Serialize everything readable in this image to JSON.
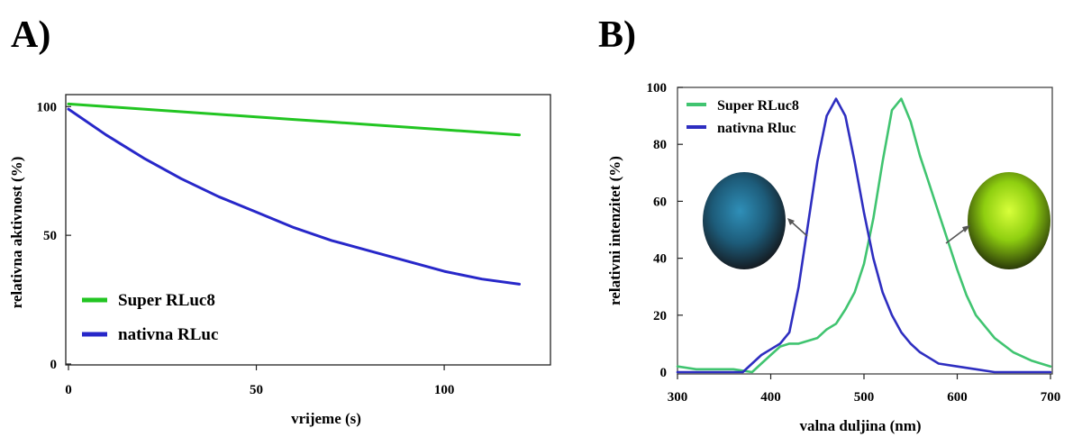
{
  "panels": {
    "a_label": "A)",
    "b_label": "B)"
  },
  "colors": {
    "green": "#22c522",
    "blue": "#2727c9",
    "green_b": "#40c470",
    "blue_b": "#2e2ec0",
    "frame": "#333333"
  },
  "chart_data": [
    {
      "type": "line",
      "title": "",
      "xlabel": "vrijeme (s)",
      "ylabel": "relativna aktivnost (%)",
      "xlim": [
        0,
        123
      ],
      "ylim": [
        0,
        105
      ],
      "xticks": [
        "0",
        "50",
        "100"
      ],
      "yticks": [
        "0",
        "50",
        "100"
      ],
      "legend_position": "bottom-left",
      "grid": false,
      "series": [
        {
          "name": "Super RLuc8",
          "color": "#22c522",
          "x": [
            0,
            10,
            20,
            30,
            40,
            50,
            60,
            70,
            80,
            90,
            100,
            110,
            120
          ],
          "y": [
            101,
            100,
            99,
            98,
            97,
            96,
            95,
            94,
            93,
            92,
            91,
            90,
            89
          ]
        },
        {
          "name": "nativna RLuc",
          "color": "#2727c9",
          "x": [
            0,
            10,
            20,
            30,
            40,
            50,
            60,
            70,
            80,
            90,
            100,
            110,
            120
          ],
          "y": [
            99,
            89,
            80,
            72,
            65,
            59,
            53,
            48,
            44,
            40,
            36,
            33,
            31
          ]
        }
      ]
    },
    {
      "type": "line",
      "title": "",
      "xlabel": "valna duljina (nm)",
      "ylabel": "relativni intenzitet (%)",
      "xlim": [
        300,
        700
      ],
      "ylim": [
        0,
        100
      ],
      "xticks": [
        "300",
        "400",
        "500",
        "600",
        "700"
      ],
      "yticks": [
        "0",
        "20",
        "40",
        "60",
        "80",
        "100"
      ],
      "legend_position": "top-left",
      "grid": false,
      "series": [
        {
          "name": "Super RLuc8",
          "color": "#40c470",
          "x": [
            300,
            320,
            340,
            360,
            380,
            390,
            400,
            410,
            420,
            430,
            440,
            450,
            460,
            470,
            480,
            490,
            500,
            510,
            520,
            530,
            540,
            550,
            560,
            570,
            580,
            590,
            600,
            610,
            620,
            640,
            660,
            680,
            700
          ],
          "y": [
            2,
            1,
            1,
            1,
            0,
            3,
            6,
            9,
            10,
            10,
            11,
            12,
            15,
            17,
            22,
            28,
            38,
            54,
            74,
            92,
            96,
            88,
            76,
            66,
            56,
            46,
            36,
            27,
            20,
            12,
            7,
            4,
            2
          ]
        },
        {
          "name": "nativna Rluc",
          "color": "#2e2ec0",
          "x": [
            300,
            320,
            340,
            360,
            370,
            380,
            390,
            400,
            410,
            420,
            430,
            440,
            450,
            460,
            470,
            480,
            490,
            500,
            510,
            520,
            530,
            540,
            550,
            560,
            570,
            580,
            600,
            620,
            640,
            660,
            680,
            700
          ],
          "y": [
            0,
            0,
            0,
            0,
            0,
            3,
            6,
            8,
            10,
            14,
            30,
            52,
            74,
            90,
            96,
            90,
            74,
            56,
            40,
            28,
            20,
            14,
            10,
            7,
            5,
            3,
            2,
            1,
            0,
            0,
            0,
            0
          ]
        }
      ]
    }
  ]
}
